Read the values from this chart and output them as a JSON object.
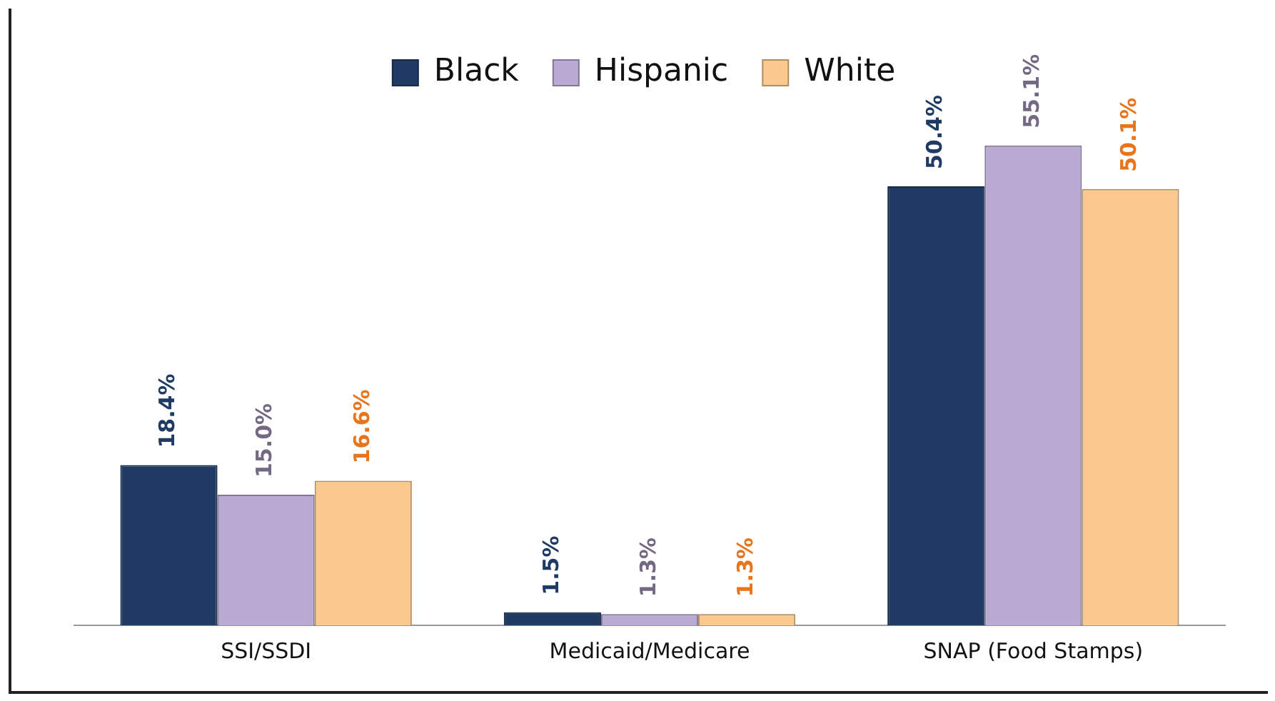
{
  "chart_data": {
    "type": "bar",
    "categories": [
      "SSI/SSDI",
      "Medicaid/Medicare",
      "SNAP (Food Stamps)"
    ],
    "series": [
      {
        "name": "Black",
        "color": "#1f3b63",
        "values": [
          18.4,
          1.5,
          50.4
        ],
        "value_labels": [
          "18.4%",
          "1.5%",
          "50.4%"
        ]
      },
      {
        "name": "Hispanic",
        "color": "#b9aad3",
        "values": [
          15.0,
          1.3,
          55.1
        ],
        "value_labels": [
          "15.0%",
          "1.3%",
          "55.1%"
        ]
      },
      {
        "name": "White",
        "color": "#fbc98e",
        "values": [
          16.6,
          1.3,
          50.1
        ],
        "value_labels": [
          "16.6%",
          "1.3%",
          "50.1%"
        ]
      }
    ],
    "legend": "top",
    "grid": false
  }
}
